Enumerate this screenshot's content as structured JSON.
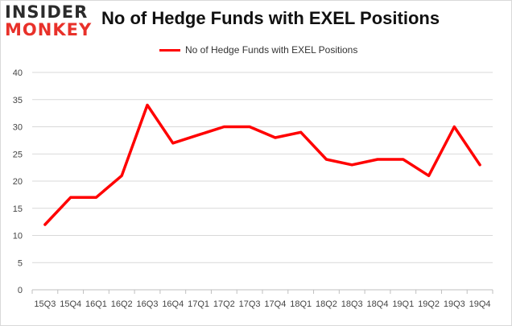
{
  "logo": {
    "line1": "INSIDER",
    "line2": "MONKEY"
  },
  "chart_data": {
    "type": "line",
    "title": "No of Hedge Funds with EXEL Positions",
    "categories": [
      "15Q3",
      "15Q4",
      "16Q1",
      "16Q2",
      "16Q3",
      "16Q4",
      "17Q1",
      "17Q2",
      "17Q3",
      "17Q4",
      "18Q1",
      "18Q2",
      "18Q3",
      "18Q4",
      "19Q1",
      "19Q2",
      "19Q3",
      "19Q4"
    ],
    "series": [
      {
        "name": "No of Hedge Funds with EXEL Positions",
        "color": "#ff0000",
        "values": [
          12,
          17,
          17,
          21,
          34,
          27,
          28.5,
          30,
          30,
          28,
          29,
          24,
          23,
          24,
          24,
          21,
          30,
          23
        ]
      }
    ],
    "yticks": [
      0,
      5,
      10,
      15,
      20,
      25,
      30,
      35,
      40
    ],
    "ylim": [
      0,
      40
    ],
    "grid": true,
    "legend_position": "top"
  }
}
